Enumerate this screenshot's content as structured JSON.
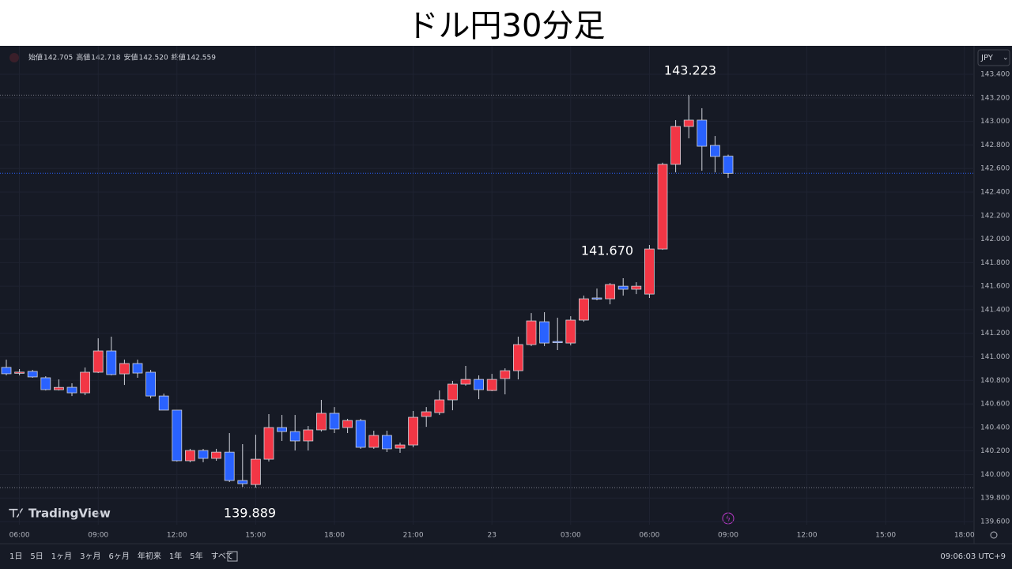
{
  "header": {
    "title": "ドル円30分足"
  },
  "legend_info": [
    {
      "label": "始値",
      "value": "142.705"
    },
    {
      "label": "高値",
      "value": "142.718"
    },
    {
      "label": "安値",
      "value": "142.520"
    },
    {
      "label": "終値",
      "value": "142.559"
    }
  ],
  "currency": "JPY",
  "brand": "TradingView",
  "ranges": [
    "1日",
    "5日",
    "1ヶ月",
    "3ヶ月",
    "6ヶ月",
    "年初来",
    "1年",
    "5年",
    "すべて"
  ],
  "clock": "09:06:03 UTC+9",
  "chart_data": {
    "type": "candlestick",
    "categories": [
      null,
      "06:00",
      null,
      null,
      null,
      null,
      null,
      "09:00",
      null,
      null,
      null,
      null,
      null,
      "12:00",
      null,
      null,
      null,
      null,
      null,
      "15:00",
      null,
      null,
      null,
      null,
      null,
      "18:00",
      null,
      null,
      null,
      null,
      null,
      "21:00",
      null,
      null,
      null,
      null,
      null,
      "23",
      null,
      null,
      null,
      null,
      null,
      "03:00",
      null,
      null,
      null,
      null,
      null,
      "06:00",
      null,
      null,
      null,
      null,
      null,
      "09:00",
      null,
      null,
      null,
      null,
      null,
      "12:00",
      null,
      null,
      null,
      null,
      null,
      "15:00",
      null,
      null,
      null,
      null,
      null,
      "18:00"
    ],
    "open": [
      140.91,
      140.86,
      140.876,
      140.822,
      140.72,
      140.741,
      140.694,
      140.869,
      141.05,
      140.855,
      140.943,
      140.869,
      140.667,
      140.547,
      140.117,
      140.204,
      140.137,
      140.19,
      139.949,
      139.915,
      140.13,
      140.399,
      140.365,
      140.285,
      140.379,
      140.52,
      140.399,
      140.459,
      140.231,
      140.332,
      140.224,
      140.251,
      140.493,
      140.526,
      140.634,
      140.768,
      140.808,
      140.714,
      140.815,
      140.882,
      141.104,
      141.298,
      141.13,
      141.117,
      141.312,
      141.5,
      141.493,
      141.6,
      141.574,
      141.533,
      141.916,
      142.635,
      142.957,
      143.011,
      142.796,
      142.705,
      null,
      null,
      null,
      null,
      null,
      null,
      null,
      null,
      null,
      null,
      null,
      null,
      null,
      null,
      null,
      null,
      null,
      null
    ],
    "high": [
      140.976,
      140.896,
      140.889,
      140.835,
      140.808,
      140.775,
      140.909,
      141.157,
      141.171,
      140.976,
      140.976,
      140.889,
      140.687,
      140.547,
      140.218,
      140.218,
      140.218,
      140.352,
      140.258,
      140.338,
      140.513,
      140.506,
      140.506,
      140.412,
      140.634,
      140.573,
      140.473,
      140.473,
      140.372,
      140.372,
      140.271,
      140.54,
      140.573,
      140.714,
      140.795,
      140.923,
      140.842,
      140.855,
      140.902,
      141.171,
      141.372,
      141.379,
      141.332,
      141.345,
      141.52,
      141.58,
      141.627,
      141.668,
      141.634,
      141.95,
      142.649,
      143.011,
      143.223,
      143.112,
      142.876,
      142.718,
      null,
      null,
      null,
      null,
      null,
      null,
      null,
      null,
      null,
      null,
      null,
      null,
      null,
      null,
      null,
      null,
      null,
      null
    ],
    "low": [
      140.842,
      140.842,
      140.822,
      140.714,
      140.714,
      140.667,
      140.674,
      140.862,
      140.842,
      140.761,
      140.822,
      140.647,
      140.547,
      140.11,
      140.104,
      140.104,
      140.117,
      139.936,
      139.895,
      139.889,
      140.11,
      140.285,
      140.204,
      140.204,
      140.365,
      140.352,
      140.352,
      140.218,
      140.218,
      140.191,
      140.184,
      140.231,
      140.405,
      140.506,
      140.546,
      140.755,
      140.64,
      140.708,
      140.681,
      140.808,
      141.091,
      141.091,
      141.057,
      141.097,
      141.298,
      141.48,
      141.446,
      141.52,
      141.533,
      141.5,
      141.909,
      142.567,
      142.856,
      142.581,
      142.567,
      142.52,
      null,
      null,
      null,
      null,
      null,
      null,
      null,
      null,
      null,
      null,
      null,
      null,
      null,
      null,
      null,
      null,
      null,
      null
    ],
    "close": [
      140.856,
      140.87,
      140.829,
      140.721,
      140.74,
      140.694,
      140.869,
      141.05,
      140.849,
      140.943,
      140.862,
      140.667,
      140.547,
      140.117,
      140.204,
      140.137,
      140.19,
      139.949,
      139.922,
      140.13,
      140.399,
      140.365,
      140.285,
      140.379,
      140.52,
      140.386,
      140.459,
      140.231,
      140.332,
      140.218,
      140.251,
      140.486,
      140.533,
      140.634,
      140.768,
      140.808,
      140.721,
      140.808,
      140.882,
      141.104,
      141.305,
      141.117,
      141.12,
      141.312,
      141.493,
      141.49,
      141.614,
      141.574,
      141.6,
      141.916,
      142.635,
      142.957,
      143.011,
      142.789,
      142.702,
      142.559,
      null,
      null,
      null,
      null,
      null,
      null,
      null,
      null,
      null,
      null,
      null,
      null,
      null,
      null,
      null,
      null,
      null,
      null
    ],
    "up_color": "#f23645",
    "down_color": "#2962ff",
    "ylim": [
      139.412,
      143.642
    ],
    "yticks": [
      {
        "value": 139.6,
        "label": "139.600"
      },
      {
        "value": 139.8,
        "label": "139.800"
      },
      {
        "value": 140.0,
        "label": "140.000"
      },
      {
        "value": 140.2,
        "label": "140.200"
      },
      {
        "value": 140.4,
        "label": "140.400"
      },
      {
        "value": 140.6,
        "label": "140.600"
      },
      {
        "value": 140.8,
        "label": "140.800"
      },
      {
        "value": 141.0,
        "label": "141.000"
      },
      {
        "value": 141.2,
        "label": "141.200"
      },
      {
        "value": 141.4,
        "label": "141.400"
      },
      {
        "value": 141.6,
        "label": "141.600"
      },
      {
        "value": 141.8,
        "label": "141.800"
      },
      {
        "value": 142.0,
        "label": "142.000"
      },
      {
        "value": 142.2,
        "label": "142.200"
      },
      {
        "value": 142.4,
        "label": "142.400"
      },
      {
        "value": 142.6,
        "label": "142.600"
      },
      {
        "value": 142.8,
        "label": "142.800"
      },
      {
        "value": 143.0,
        "label": "143.000"
      },
      {
        "value": 143.2,
        "label": "143.200"
      },
      {
        "value": 143.4,
        "label": "143.400"
      }
    ],
    "grid": true,
    "annotations": [
      {
        "value": 143.223,
        "label": "143.223"
      },
      {
        "value": 141.67,
        "label": "141.670"
      },
      {
        "value": 139.889,
        "label": "139.889"
      }
    ]
  }
}
